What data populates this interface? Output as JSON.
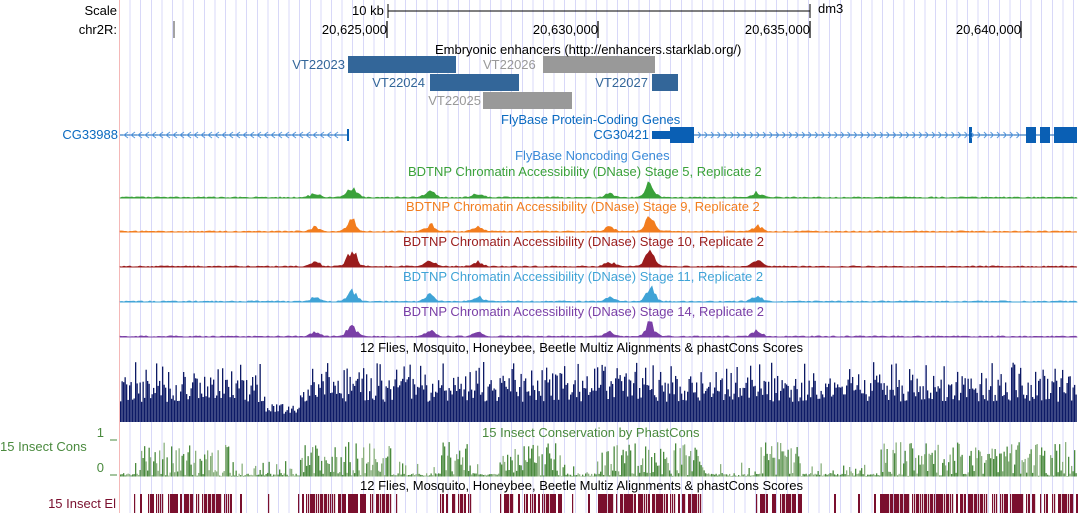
{
  "ruler": {
    "scale_label": "Scale",
    "scale_bar": "10 kb",
    "assembly": "dm3",
    "chrom_label": "chr2R:",
    "ticks": [
      "20,625,000",
      "20,630,000",
      "20,635,000",
      "20,640,000"
    ]
  },
  "tracks": {
    "enhancers": {
      "title": "Embryonic enhancers (http://enhancers.starklab.org/)",
      "items": [
        {
          "name": "VT22023",
          "color": "#336699"
        },
        {
          "name": "VT22026",
          "color": "#999999"
        },
        {
          "name": "VT22024",
          "color": "#336699"
        },
        {
          "name": "VT22027",
          "color": "#336699"
        },
        {
          "name": "VT22025",
          "color": "#999999"
        }
      ]
    },
    "protein_genes": {
      "title": "FlyBase Protein-Coding Genes",
      "genes": [
        "CG33988",
        "CG30421"
      ],
      "color": "#0a5fb4"
    },
    "noncoding": {
      "title": "FlyBase Noncoding Genes"
    },
    "dnase": [
      {
        "title": "BDTNP Chromatin Accessibility (DNase) Stage 5, Replicate 2",
        "color": "#3aa13a"
      },
      {
        "title": "BDTNP Chromatin Accessibility (DNase) Stage 9, Replicate 2",
        "color": "#f27d1e"
      },
      {
        "title": "BDTNP Chromatin Accessibility (DNase) Stage 10, Replicate 2",
        "color": "#9a1c1c"
      },
      {
        "title": "BDTNP Chromatin Accessibility (DNase) Stage 11, Replicate 2",
        "color": "#3fa3d6"
      },
      {
        "title": "BDTNP Chromatin Accessibility (DNase) Stage 14, Replicate 2",
        "color": "#7a3fa6"
      }
    ],
    "multiz": {
      "title": "12 Flies, Mosquito, Honeybee, Beetle Multiz Alignments & phastCons Scores",
      "color": "#0d1a66"
    },
    "cons": {
      "label": "15 Insect Cons",
      "title": "15 Insect Conservation by PhastCons",
      "ymax": "1",
      "ymin": "0",
      "color": "#4a8a3e"
    },
    "elements": {
      "label": "15 Insect El",
      "title": "12 Flies, Mosquito, Honeybee, Beetle Multiz Alignments & phastCons Scores",
      "color": "#7a0f2e"
    }
  }
}
